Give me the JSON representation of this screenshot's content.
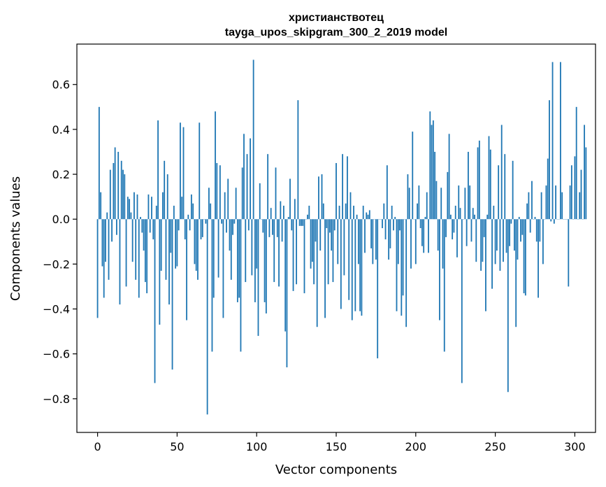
{
  "chart_data": {
    "type": "bar",
    "title": "христианствотец",
    "subtitle": "tayga_upos_skipgram_300_2_2019 model",
    "xlabel": "Vector components",
    "ylabel": "Components values",
    "xlim": [
      -13,
      313
    ],
    "ylim": [
      -0.95,
      0.78
    ],
    "xticks": [
      0,
      50,
      100,
      150,
      200,
      250,
      300
    ],
    "yticks": [
      0.6,
      0.4,
      0.2,
      0.0,
      -0.2,
      -0.4,
      -0.6,
      -0.8
    ],
    "xtick_labels": [
      "0",
      "50",
      "100",
      "150",
      "200",
      "250",
      "300"
    ],
    "ytick_labels": [
      "0.6",
      "0.4",
      "0.2",
      "0.0",
      "−0.2",
      "−0.4",
      "−0.6",
      "−0.8"
    ],
    "bar_color": "#1f77b4",
    "grid": false,
    "values": [
      -0.44,
      0.5,
      0.12,
      -0.21,
      -0.35,
      -0.19,
      0.03,
      -0.27,
      0.22,
      -0.1,
      0.25,
      0.32,
      -0.07,
      0.3,
      -0.38,
      0.26,
      0.22,
      0.2,
      -0.3,
      0.1,
      0.09,
      0.03,
      -0.19,
      0.12,
      -0.27,
      0.11,
      -0.35,
      0.01,
      -0.06,
      -0.14,
      -0.28,
      -0.33,
      0.11,
      -0.06,
      0.1,
      -0.09,
      -0.73,
      0.06,
      0.44,
      -0.47,
      -0.23,
      0.12,
      0.26,
      -0.27,
      0.2,
      -0.38,
      -0.15,
      -0.67,
      0.06,
      -0.22,
      -0.21,
      -0.05,
      0.43,
      0.1,
      0.41,
      -0.09,
      -0.45,
      0.02,
      -0.05,
      0.11,
      0.07,
      -0.2,
      -0.23,
      -0.27,
      0.43,
      -0.09,
      -0.08,
      0.0,
      -0.02,
      -0.87,
      0.14,
      0.07,
      -0.59,
      -0.35,
      0.48,
      0.25,
      -0.26,
      0.24,
      -0.02,
      -0.44,
      0.12,
      -0.06,
      0.18,
      -0.14,
      -0.27,
      -0.07,
      -0.02,
      0.14,
      -0.37,
      -0.35,
      -0.59,
      0.23,
      0.38,
      -0.28,
      0.29,
      -0.05,
      0.36,
      -0.25,
      0.71,
      -0.37,
      -0.22,
      -0.52,
      0.16,
      0.0,
      -0.06,
      -0.37,
      -0.42,
      0.29,
      -0.08,
      0.05,
      -0.07,
      -0.28,
      0.23,
      -0.08,
      -0.3,
      0.08,
      -0.1,
      0.06,
      -0.5,
      -0.66,
      0.01,
      0.18,
      -0.05,
      -0.32,
      0.09,
      -0.29,
      0.53,
      -0.03,
      -0.03,
      -0.03,
      -0.33,
      0.0,
      0.02,
      0.06,
      -0.22,
      -0.19,
      -0.29,
      -0.1,
      -0.48,
      0.19,
      -0.14,
      0.2,
      0.07,
      -0.44,
      -0.04,
      -0.29,
      -0.06,
      -0.14,
      -0.28,
      -0.05,
      0.25,
      -0.2,
      0.06,
      -0.4,
      0.29,
      -0.25,
      0.07,
      0.28,
      -0.36,
      0.12,
      -0.45,
      0.06,
      -0.41,
      0.02,
      -0.2,
      -0.41,
      -0.43,
      0.06,
      -0.15,
      0.03,
      0.02,
      0.04,
      -0.13,
      -0.2,
      0.0,
      -0.18,
      -0.62,
      0.0,
      0.0,
      -0.04,
      0.07,
      -0.09,
      0.24,
      -0.18,
      -0.13,
      0.06,
      -0.05,
      0.01,
      -0.41,
      -0.2,
      -0.05,
      -0.43,
      -0.34,
      0.0,
      -0.48,
      0.2,
      0.14,
      -0.22,
      0.39,
      0.0,
      -0.2,
      0.07,
      0.15,
      -0.04,
      -0.12,
      -0.15,
      0.01,
      0.12,
      -0.15,
      0.48,
      0.42,
      0.44,
      0.3,
      0.17,
      -0.14,
      -0.45,
      0.14,
      -0.22,
      -0.59,
      -0.08,
      0.21,
      0.38,
      0.02,
      -0.09,
      -0.06,
      0.06,
      -0.17,
      0.15,
      0.05,
      -0.73,
      0.0,
      0.14,
      -0.12,
      0.3,
      0.15,
      -0.1,
      0.05,
      0.02,
      -0.19,
      0.32,
      0.35,
      -0.23,
      -0.19,
      -0.08,
      -0.41,
      0.02,
      0.37,
      0.31,
      -0.31,
      0.06,
      -0.2,
      -0.14,
      0.24,
      -0.23,
      0.42,
      -0.19,
      0.29,
      -0.15,
      -0.77,
      -0.12,
      -0.02,
      0.26,
      -0.14,
      -0.48,
      -0.18,
      0.01,
      -0.1,
      -0.07,
      -0.33,
      -0.34,
      0.07,
      0.12,
      -0.06,
      0.17,
      0.0,
      0.01,
      -0.1,
      -0.35,
      -0.1,
      0.12,
      -0.2,
      0.0,
      0.15,
      0.27,
      0.53,
      -0.01,
      0.7,
      -0.02,
      0.15,
      0.0,
      0.0,
      0.7,
      0.12,
      0.0,
      0.0,
      0.0,
      -0.3,
      0.15,
      0.24,
      0.0,
      0.28,
      0.5,
      0.0,
      0.12,
      0.22,
      0.0,
      0.42,
      0.32
    ]
  }
}
